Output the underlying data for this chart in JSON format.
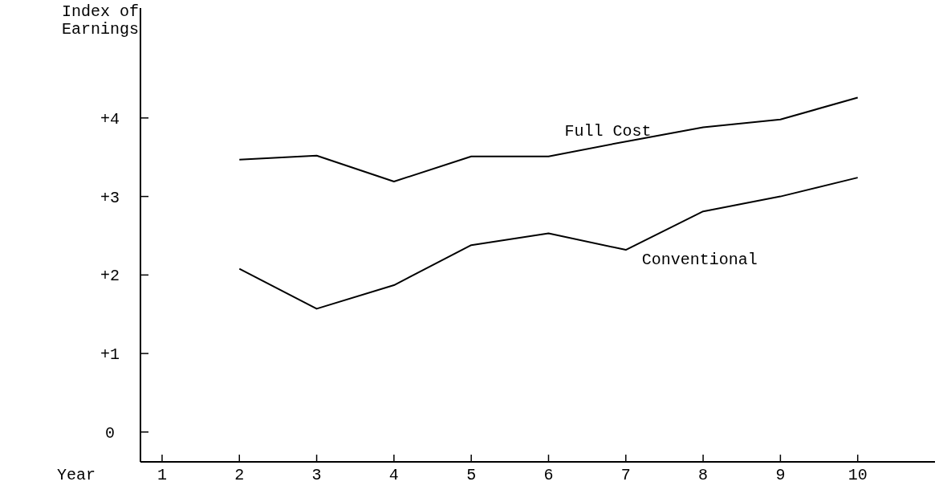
{
  "chart_data": {
    "type": "line",
    "xlabel": "Year",
    "ylabel": "Index of Earnings",
    "x": [
      2,
      3,
      4,
      5,
      6,
      7,
      8,
      9,
      10
    ],
    "xlim": [
      0.72,
      11.0
    ],
    "xticks": [
      1,
      2,
      3,
      4,
      5,
      6,
      7,
      8,
      9,
      10
    ],
    "ylim": [
      -0.38,
      5.4
    ],
    "yticks": [
      {
        "value": 0,
        "label": "0"
      },
      {
        "value": 1,
        "label": "+1"
      },
      {
        "value": 2,
        "label": "+2"
      },
      {
        "value": 3,
        "label": "+3"
      },
      {
        "value": 4,
        "label": "+4"
      }
    ],
    "series": [
      {
        "name": "Full Cost",
        "color": "#000000",
        "values": [
          3.47,
          3.52,
          3.19,
          3.51,
          3.51,
          3.7,
          3.88,
          3.98,
          4.26
        ]
      },
      {
        "name": "Conventional",
        "color": "#000000",
        "values": [
          2.08,
          1.57,
          1.87,
          2.38,
          2.53,
          2.32,
          2.81,
          3.0,
          3.24
        ]
      }
    ],
    "marker": "none",
    "line_style": "solid",
    "grid": false
  }
}
